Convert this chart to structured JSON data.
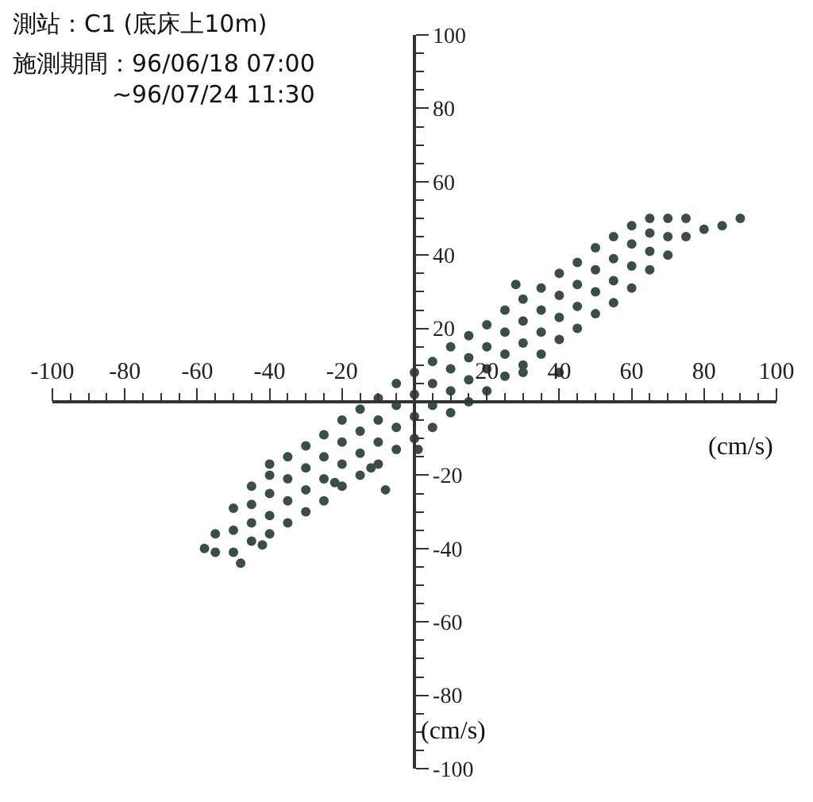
{
  "chart_data": {
    "type": "scatter",
    "title": "測站：C1 (底床上10m)",
    "subtitle": "施測期間：96/06/18 07:00\n~96/07/24 11:30",
    "xlabel": "(cm/s)",
    "ylabel": "(cm/s)",
    "xlim": [
      -100,
      100
    ],
    "ylim": [
      -100,
      100
    ],
    "xticks": [
      -100,
      -80,
      -60,
      -40,
      -20,
      {
        "value": 0,
        "label": null
      },
      20,
      40,
      60,
      80,
      100
    ],
    "yticks": [
      -100,
      -80,
      -60,
      -40,
      -20,
      {
        "value": 0,
        "label": null
      },
      20,
      40,
      60,
      80,
      100
    ],
    "marker": "circle",
    "series": [
      {
        "color": "#3b4d47",
        "x": [
          -55,
          -55,
          -50,
          -50,
          -50,
          -45,
          -45,
          -45,
          -45,
          -40,
          -40,
          -40,
          -40,
          -35,
          -35,
          -35,
          -35,
          -30,
          -30,
          -30,
          -30,
          -25,
          -25,
          -25,
          -25,
          -20,
          -20,
          -20,
          -20,
          -15,
          -15,
          -15,
          -15,
          -10,
          -10,
          -10,
          -10,
          -5,
          -5,
          -5,
          -5,
          0,
          0,
          0,
          0,
          5,
          5,
          5,
          5,
          10,
          10,
          10,
          10,
          15,
          15,
          15,
          15,
          20,
          20,
          20,
          20,
          25,
          25,
          25,
          25,
          30,
          30,
          30,
          30,
          35,
          35,
          35,
          35,
          40,
          40,
          40,
          40,
          45,
          45,
          45,
          45,
          50,
          50,
          50,
          50,
          55,
          55,
          55,
          55,
          60,
          60,
          60,
          60,
          65,
          65,
          65,
          65,
          70,
          70,
          70,
          75,
          75,
          80,
          85,
          90,
          -58,
          -48,
          -42,
          -22,
          -12,
          -8,
          30,
          -40,
          28,
          40,
          1
        ],
        "values": [
          -41,
          -36,
          -41,
          -35,
          -29,
          -38,
          -33,
          -28,
          -23,
          -36,
          -31,
          -25,
          -20,
          -33,
          -27,
          -21,
          -15,
          -30,
          -24,
          -18,
          -12,
          -27,
          -21,
          -15,
          -9,
          -23,
          -17,
          -11,
          -5,
          -20,
          -14,
          -8,
          -2,
          -17,
          -11,
          -5,
          1,
          -13,
          -7,
          -1,
          5,
          -10,
          -4,
          2,
          8,
          -7,
          -1,
          5,
          11,
          -3,
          3,
          9,
          15,
          0,
          6,
          12,
          18,
          3,
          9,
          15,
          21,
          7,
          13,
          19,
          25,
          10,
          16,
          22,
          28,
          13,
          19,
          25,
          31,
          17,
          23,
          29,
          35,
          20,
          26,
          32,
          38,
          24,
          30,
          36,
          42,
          27,
          33,
          39,
          45,
          31,
          37,
          43,
          48,
          36,
          41,
          46,
          50,
          40,
          45,
          50,
          45,
          50,
          47,
          48,
          50,
          -40,
          -44,
          -39,
          -22,
          -18,
          -24,
          8,
          -17,
          32,
          8,
          -13
        ]
      }
    ]
  }
}
